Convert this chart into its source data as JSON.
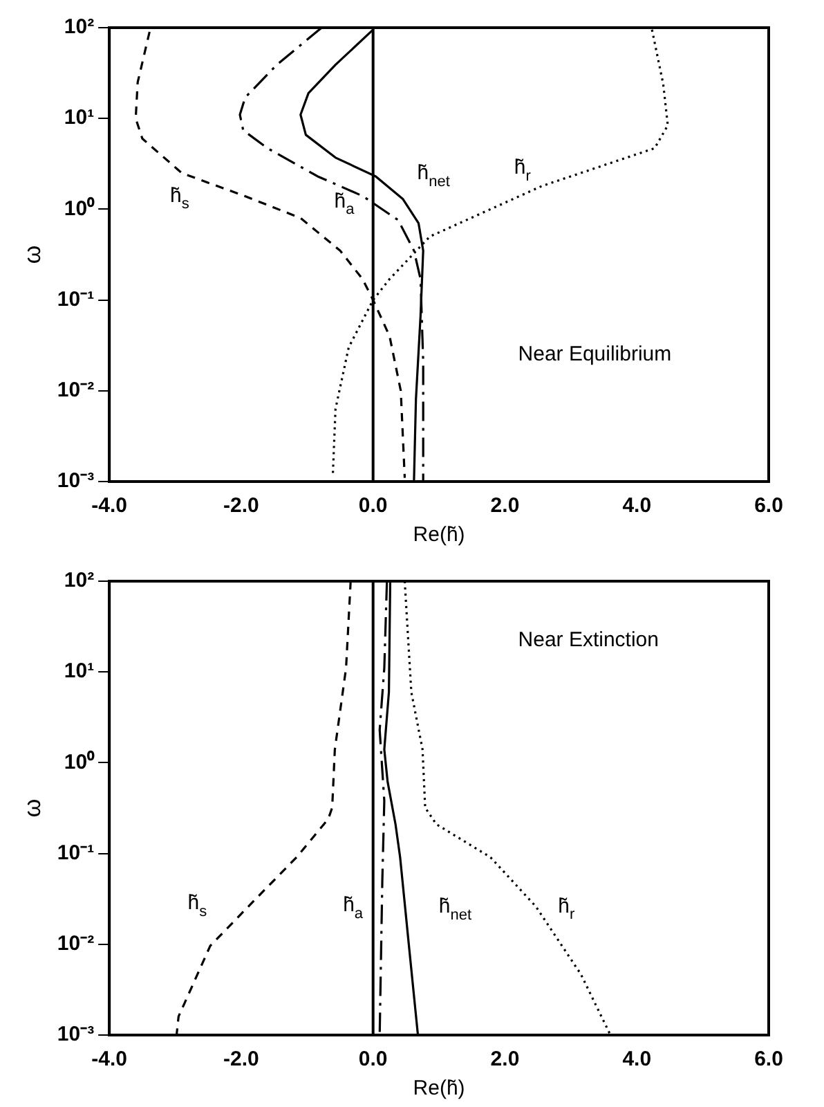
{
  "chart_data": [
    {
      "type": "line",
      "xlabel": "Re(h̃)",
      "ylabel": "ω",
      "log": "y",
      "grid": false,
      "legend": false,
      "marker": "none",
      "xlim": [
        -4,
        6
      ],
      "xticks": [
        {
          "value": -4,
          "label": "-4.0"
        },
        {
          "value": -2,
          "label": "-2.0"
        },
        {
          "value": 0,
          "label": "0.0"
        },
        {
          "value": 2,
          "label": "2.0"
        },
        {
          "value": 4,
          "label": "4.0"
        },
        {
          "value": 6,
          "label": "6.0"
        }
      ],
      "ylim": [
        0.001,
        100
      ],
      "yticks": [
        {
          "value": 0.001,
          "label": "10⁻³"
        },
        {
          "value": 0.01,
          "label": "10⁻²"
        },
        {
          "value": 0.1,
          "label": "10⁻¹"
        },
        {
          "value": 1,
          "label": "10⁰"
        },
        {
          "value": 10,
          "label": "10¹"
        },
        {
          "value": 100,
          "label": "10²"
        }
      ],
      "ref_lines": [
        {
          "axis": "x",
          "value": 0,
          "color": "#000000",
          "line_style": "solid"
        }
      ],
      "series": [
        {
          "name": "h̃$_{s}$",
          "color": "#000000",
          "line_style": "dashed",
          "x": [
            -3.39,
            -3.57,
            -3.6,
            -3.5,
            -2.9,
            -1.95,
            -1.1,
            -0.5,
            -0.16,
            0,
            0.25,
            0.42,
            0.48
          ],
          "values": [
            90,
            25,
            10,
            6,
            2.5,
            1.4,
            0.8,
            0.35,
            0.17,
            0.1,
            0.04,
            0.01,
            0.0011
          ]
        },
        {
          "name": "h̃$_{a}$",
          "color": "#000000",
          "line_style": "dashdot",
          "x": [
            -0.78,
            -1.46,
            -1.94,
            -2.02,
            -1.97,
            -1.6,
            -0.84,
            -0.16,
            0.38,
            0.62,
            0.72,
            0.76,
            0.76
          ],
          "values": [
            100,
            39,
            17,
            11,
            7.4,
            4.7,
            2.3,
            1.4,
            0.76,
            0.35,
            0.17,
            0.021,
            0.001
          ]
        },
        {
          "name": "h̃$_{net}$",
          "color": "#000000",
          "line_style": "solid",
          "x": [
            0,
            -0.57,
            -0.98,
            -1.1,
            -1.02,
            -0.57,
            0.04,
            0.45,
            0.69,
            0.76,
            0.72,
            0.65,
            0.62
          ],
          "values": [
            95,
            39,
            19,
            11,
            6.6,
            3.7,
            2.3,
            1.3,
            0.7,
            0.35,
            0.067,
            0.0081,
            0.001
          ]
        },
        {
          "name": "h̃$_{r}$",
          "color": "#000000",
          "line_style": "dotted",
          "x": [
            4.23,
            4.4,
            4.47,
            4.27,
            2.56,
            0.86,
            0.25,
            0,
            -0.37,
            -0.57,
            -0.61
          ],
          "values": [
            95,
            24,
            8.4,
            4.7,
            1.8,
            0.5,
            0.17,
            0.1,
            0.03,
            0.0063,
            0.0012
          ]
        }
      ],
      "annotations": [
        "Near Equilibrium"
      ]
    },
    {
      "type": "line",
      "xlabel": "Re(h̃)",
      "ylabel": "ω",
      "log": "y",
      "grid": false,
      "legend": false,
      "marker": "none",
      "xlim": [
        -4,
        6
      ],
      "xticks": [
        {
          "value": -4,
          "label": "-4.0"
        },
        {
          "value": -2,
          "label": "-2.0"
        },
        {
          "value": 0,
          "label": "0.0"
        },
        {
          "value": 2,
          "label": "2.0"
        },
        {
          "value": 4,
          "label": "4.0"
        },
        {
          "value": 6,
          "label": "6.0"
        }
      ],
      "ylim": [
        0.001,
        100
      ],
      "yticks": [
        {
          "value": 0.001,
          "label": "10⁻³"
        },
        {
          "value": 0.01,
          "label": "10⁻²"
        },
        {
          "value": 0.1,
          "label": "10⁻¹"
        },
        {
          "value": 1,
          "label": "10⁰"
        },
        {
          "value": 10,
          "label": "10¹"
        },
        {
          "value": 100,
          "label": "10²"
        }
      ],
      "ref_lines": [
        {
          "axis": "x",
          "value": 0,
          "color": "#000000",
          "line_style": "solid"
        }
      ],
      "series": [
        {
          "name": "h̃$_{s}$",
          "color": "#000000",
          "line_style": "dashed",
          "x": [
            -0.34,
            -0.41,
            -0.58,
            -0.62,
            -0.68,
            -1.16,
            -1.85,
            -2.47,
            -2.95,
            -2.98
          ],
          "values": [
            100,
            11,
            1.4,
            0.32,
            0.24,
            0.091,
            0.028,
            0.0096,
            0.0016,
            0.001
          ]
        },
        {
          "name": "h̃$_{a}$",
          "color": "#000000",
          "line_style": "dashdot",
          "x": [
            0.21,
            0.17,
            0.1,
            0.17,
            0.14,
            0.1
          ],
          "values": [
            100,
            11,
            2.3,
            0.38,
            0.05,
            0.001
          ]
        },
        {
          "name": "h̃$_{net}$",
          "color": "#000000",
          "line_style": "solid",
          "x": [
            0.26,
            0.24,
            0.17,
            0.22,
            0.34,
            0.41,
            0.55,
            0.68
          ],
          "values": [
            100,
            6,
            1.4,
            0.62,
            0.21,
            0.091,
            0.0087,
            0.001
          ]
        },
        {
          "name": "h̃$_{r}$",
          "color": "#000000",
          "line_style": "dotted",
          "x": [
            0.48,
            0.58,
            0.75,
            0.79,
            0.96,
            1.78,
            2.47,
            3.15,
            3.6
          ],
          "values": [
            100,
            6,
            1.4,
            0.32,
            0.21,
            0.091,
            0.026,
            0.0047,
            0.001
          ]
        }
      ],
      "annotations": [
        "Near Extinction"
      ]
    }
  ]
}
